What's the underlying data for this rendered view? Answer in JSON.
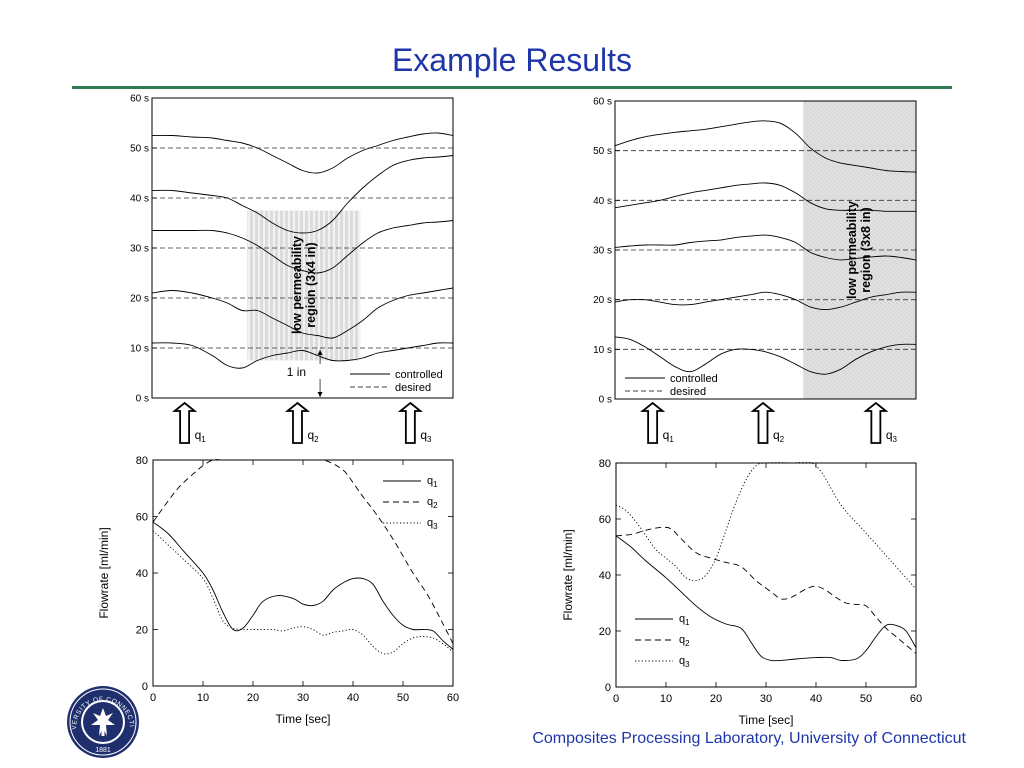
{
  "page": {
    "title": "Example Results",
    "footer": "Composites Processing Laboratory, University of Connecticut"
  },
  "logo": {
    "text_top": "UNIVERSITY OF CONNECTICUT",
    "year": "1881",
    "color": "#1f2f6e"
  },
  "chart_data": [
    {
      "type": "line",
      "panel": "top-left flow front",
      "ylim": [
        0,
        60
      ],
      "ytick_labels": [
        "0 s",
        "10 s",
        "20 s",
        "30 s",
        "40 s",
        "50 s",
        "60 s"
      ],
      "x_domain": [
        0,
        60
      ],
      "legend": {
        "placement": "bottom-right",
        "entries": [
          "controlled",
          "desired"
        ]
      },
      "region": {
        "label_line1": "low permeability",
        "label_line2": "region (3x4 in)",
        "x_range": [
          19,
          41.5
        ],
        "y_range": [
          7.5,
          37.5
        ],
        "fill": "#d9d9d9"
      },
      "annotation": {
        "text": "1 in",
        "x": 33.5
      },
      "inlets": [
        {
          "label": "q",
          "sub": "1",
          "x": 6.5
        },
        {
          "label": "q",
          "sub": "2",
          "x": 29
        },
        {
          "label": "q",
          "sub": "3",
          "x": 51.5
        }
      ],
      "desired": [
        10,
        20,
        30,
        40,
        50
      ],
      "controlled": [
        {
          "x": [
            0,
            4,
            8,
            12,
            15,
            18,
            21,
            24,
            27,
            30,
            33,
            36,
            39,
            42,
            45,
            48,
            51,
            54,
            57,
            60
          ],
          "y": [
            11,
            11,
            10.5,
            8.5,
            6.5,
            6,
            7.5,
            8.5,
            9,
            9.5,
            8.5,
            7.5,
            7.5,
            8,
            9,
            9.5,
            10,
            10.5,
            11,
            11
          ]
        },
        {
          "x": [
            0,
            4,
            8,
            12,
            15,
            18,
            21,
            24,
            27,
            30,
            33,
            36,
            39,
            42,
            45,
            48,
            51,
            54,
            57,
            60
          ],
          "y": [
            21,
            21.5,
            21,
            20,
            19,
            17.5,
            17.5,
            16,
            14.5,
            13,
            12.5,
            12,
            13.5,
            15.5,
            18,
            19.5,
            20.5,
            21,
            21.5,
            22
          ]
        },
        {
          "x": [
            0,
            4,
            8,
            12,
            15,
            18,
            21,
            24,
            27,
            30,
            33,
            36,
            39,
            42,
            45,
            48,
            51,
            54,
            57,
            60
          ],
          "y": [
            33.5,
            33.5,
            33.5,
            33.5,
            33,
            32,
            30.5,
            28.5,
            26.5,
            25.5,
            25,
            26,
            28.5,
            31,
            33,
            34,
            34.5,
            35,
            35.2,
            35.5
          ]
        },
        {
          "x": [
            0,
            4,
            8,
            12,
            15,
            18,
            21,
            24,
            27,
            30,
            33,
            36,
            39,
            42,
            45,
            48,
            51,
            54,
            57,
            60
          ],
          "y": [
            41.5,
            41.5,
            41,
            40.5,
            40,
            38.5,
            37,
            35,
            33.5,
            33,
            33.5,
            35.5,
            39,
            42,
            44.5,
            46.5,
            47.5,
            48,
            48.2,
            48.5
          ]
        },
        {
          "x": [
            0,
            4,
            8,
            12,
            15,
            18,
            21,
            24,
            27,
            30,
            33,
            36,
            39,
            42,
            45,
            48,
            51,
            54,
            57,
            60
          ],
          "y": [
            52.5,
            52.5,
            52.2,
            52,
            51.5,
            51,
            50,
            48.5,
            47,
            45.5,
            45,
            46,
            48,
            49.5,
            50.5,
            51.5,
            52.2,
            52.8,
            53,
            52.5
          ]
        }
      ]
    },
    {
      "type": "line",
      "panel": "top-right flow front",
      "ylim": [
        0,
        60
      ],
      "ytick_labels": [
        "0 s",
        "10 s",
        "20 s",
        "30 s",
        "40 s",
        "50 s",
        "60 s"
      ],
      "x_domain": [
        0,
        60
      ],
      "legend": {
        "placement": "bottom-left",
        "entries": [
          "controlled",
          "desired"
        ]
      },
      "region": {
        "label_line1": "low permeability",
        "label_line2": "region (3x8 in)",
        "x_range": [
          37.5,
          60
        ],
        "y_range": [
          0,
          60
        ],
        "fill": "#d9d9d9"
      },
      "inlets": [
        {
          "label": "q",
          "sub": "1",
          "x": 7.5
        },
        {
          "label": "q",
          "sub": "2",
          "x": 29.5
        },
        {
          "label": "q",
          "sub": "3",
          "x": 52
        }
      ],
      "desired": [
        10,
        20,
        30,
        40,
        50
      ],
      "controlled": [
        {
          "x": [
            0,
            3,
            6,
            9,
            12,
            15,
            18,
            21,
            24,
            27,
            30,
            33,
            36,
            39,
            42,
            45,
            48,
            51,
            54,
            57,
            60
          ],
          "y": [
            12.5,
            12,
            10.5,
            8.5,
            6.5,
            5.5,
            7,
            9,
            10,
            10,
            9.5,
            8.5,
            7,
            5.5,
            5,
            6,
            8,
            9.5,
            10.5,
            11,
            11
          ]
        },
        {
          "x": [
            0,
            3,
            6,
            9,
            12,
            15,
            18,
            21,
            24,
            27,
            30,
            33,
            36,
            39,
            42,
            45,
            48,
            51,
            54,
            57,
            60
          ],
          "y": [
            19.5,
            20,
            20,
            19.5,
            19,
            19,
            19.5,
            20,
            20.5,
            21,
            21.5,
            21,
            20,
            18.5,
            18,
            18.5,
            19.5,
            20.5,
            21,
            21.5,
            21.5
          ]
        },
        {
          "x": [
            0,
            3,
            6,
            9,
            12,
            15,
            18,
            21,
            24,
            27,
            30,
            33,
            36,
            39,
            42,
            45,
            48,
            51,
            54,
            57,
            60
          ],
          "y": [
            30.5,
            30.8,
            31,
            31,
            31,
            31.5,
            31.8,
            32,
            32.5,
            32.8,
            33,
            32.5,
            31.5,
            29.5,
            28.5,
            28,
            28.3,
            28.6,
            28.8,
            28.5,
            28
          ]
        },
        {
          "x": [
            0,
            3,
            6,
            9,
            12,
            15,
            18,
            21,
            24,
            27,
            30,
            33,
            36,
            39,
            42,
            45,
            48,
            51,
            54,
            57,
            60
          ],
          "y": [
            38.5,
            39,
            39.5,
            40,
            40.8,
            41.5,
            42,
            42.5,
            43,
            43.3,
            43.5,
            43,
            41.5,
            39.5,
            38.3,
            38,
            38,
            38,
            37.8,
            37.8,
            37.8
          ]
        },
        {
          "x": [
            0,
            3,
            6,
            9,
            12,
            15,
            18,
            21,
            24,
            27,
            30,
            33,
            36,
            39,
            42,
            45,
            48,
            51,
            54,
            57,
            60
          ],
          "y": [
            51,
            52,
            52.8,
            53.3,
            53.7,
            54,
            54.3,
            54.8,
            55.3,
            55.8,
            56,
            55.5,
            53.5,
            50.5,
            48.5,
            47.5,
            47,
            46.5,
            46,
            45.8,
            45.7
          ]
        }
      ]
    },
    {
      "type": "line",
      "panel": "bottom-left flowrate",
      "ylabel": "Flowrate [ml/min]",
      "xlabel": "Time [sec]",
      "xlim": [
        0,
        60
      ],
      "ylim": [
        0,
        80
      ],
      "xticks": [
        0,
        10,
        20,
        30,
        40,
        50,
        60
      ],
      "yticks": [
        0,
        20,
        40,
        60,
        80
      ],
      "legend": {
        "placement": "top-right"
      },
      "series": [
        {
          "name": "q",
          "sub": "1",
          "style": "solid",
          "x": [
            0,
            3,
            6,
            10,
            12,
            14,
            16,
            18,
            20,
            22,
            25,
            28,
            30,
            32,
            34,
            36,
            38,
            40,
            42,
            44,
            46,
            48,
            50,
            52,
            54,
            56,
            58,
            60
          ],
          "y": [
            58,
            54,
            48,
            40,
            34,
            26,
            20,
            20.5,
            25,
            30,
            32,
            31,
            29,
            28.5,
            30,
            34,
            36.5,
            38,
            38,
            36,
            30,
            25,
            21.5,
            20,
            20,
            19.5,
            16,
            13
          ]
        },
        {
          "name": "q",
          "sub": "2",
          "style": "dashed",
          "x": [
            0,
            2,
            5,
            8,
            10,
            12,
            14,
            16,
            18,
            20,
            25,
            30,
            33,
            35,
            38,
            40,
            42,
            45,
            48,
            50,
            52,
            55,
            58,
            60
          ],
          "y": [
            58,
            63,
            70,
            75,
            78,
            80,
            80,
            80,
            80,
            80,
            80,
            80,
            80,
            79.5,
            76.5,
            72,
            67,
            60,
            52,
            46,
            40,
            32,
            22,
            15
          ]
        },
        {
          "name": "q",
          "sub": "3",
          "style": "dotted",
          "x": [
            0,
            3,
            6,
            10,
            12,
            14,
            16,
            18,
            20,
            22,
            24,
            26,
            28,
            30,
            32,
            34,
            36,
            38,
            40,
            42,
            44,
            46,
            48,
            50,
            52,
            54,
            56,
            58,
            60
          ],
          "y": [
            55,
            50,
            45,
            38,
            31,
            23,
            20.5,
            20,
            20,
            20,
            20,
            19.5,
            20.5,
            21,
            20,
            18,
            19,
            19.5,
            20,
            18,
            14,
            11.5,
            12,
            15,
            17,
            17.5,
            17,
            15,
            12
          ]
        }
      ]
    },
    {
      "type": "line",
      "panel": "bottom-right flowrate",
      "ylabel": "Flowrate [ml/min]",
      "xlabel": "Time [sec]",
      "xlim": [
        0,
        60
      ],
      "ylim": [
        0,
        80
      ],
      "xticks": [
        0,
        10,
        20,
        30,
        40,
        50,
        60
      ],
      "yticks": [
        0,
        20,
        40,
        60,
        80
      ],
      "legend": {
        "placement": "bottom-left"
      },
      "series": [
        {
          "name": "q",
          "sub": "1",
          "style": "solid",
          "x": [
            0,
            3,
            6,
            10,
            13,
            16,
            19,
            22,
            25,
            27,
            29,
            31,
            33,
            36,
            40,
            43,
            45,
            48,
            50,
            52,
            54,
            56,
            58,
            60
          ],
          "y": [
            54,
            50,
            45,
            39,
            34,
            29,
            25,
            22.5,
            21,
            16,
            11,
            9.5,
            9.5,
            10,
            10.5,
            10.5,
            9.5,
            10,
            13,
            18,
            22,
            22,
            20,
            14
          ]
        },
        {
          "name": "q",
          "sub": "2",
          "style": "dashed",
          "x": [
            0,
            3,
            6,
            9,
            11,
            13,
            16,
            19,
            22,
            25,
            28,
            31,
            33,
            35,
            38,
            40,
            42,
            44,
            46,
            48,
            50,
            52,
            54,
            56,
            58,
            60
          ],
          "y": [
            54,
            54.5,
            56,
            57,
            56.5,
            53,
            48,
            46,
            44.5,
            43,
            38,
            34,
            31.5,
            32,
            35,
            36,
            34.5,
            32,
            30,
            29.5,
            29,
            25,
            21,
            18,
            15,
            12
          ]
        },
        {
          "name": "q",
          "sub": "3",
          "style": "dotted",
          "x": [
            0,
            2,
            4,
            6,
            8,
            10,
            12,
            14,
            16,
            18,
            20,
            22,
            24,
            26,
            28,
            30,
            35,
            40,
            45,
            50,
            55,
            60
          ],
          "y": [
            65,
            63,
            59,
            54,
            49,
            46,
            43,
            39,
            38,
            40,
            46,
            56,
            66,
            74,
            79,
            80,
            80,
            79,
            65,
            55,
            45,
            35
          ]
        }
      ]
    }
  ]
}
